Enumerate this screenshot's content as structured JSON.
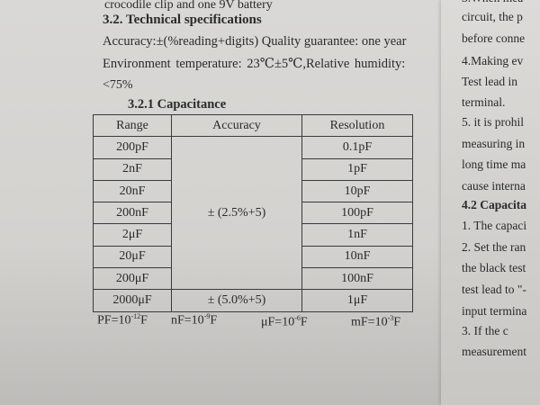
{
  "left": {
    "line0": "crocodile clip and one 9V battery",
    "heading": "3.2. Technical specifications",
    "accuracy_line": "Accuracy:±(%reading+digits)   Quality guarantee: one year",
    "env_line": "Environment   temperature:   23℃±5℃,Relative   humidity:",
    "humidity": "<75%",
    "subheading": "3.2.1    Capacitance"
  },
  "table": {
    "headers": [
      "Range",
      "Accuracy",
      "Resolution"
    ],
    "rows": [
      {
        "range": "200pF",
        "resolution": "0.1pF"
      },
      {
        "range": "2nF",
        "resolution": "1pF"
      },
      {
        "range": "20nF",
        "resolution": "10pF"
      },
      {
        "range": "200nF",
        "resolution": "100pF"
      },
      {
        "range": "2μF",
        "resolution": "1nF"
      },
      {
        "range": "20μF",
        "resolution": "10nF"
      },
      {
        "range": "200μF",
        "resolution": "100nF"
      },
      {
        "range": "2000μF",
        "resolution": "1μF"
      }
    ],
    "accuracy_group1": "± (2.5%+5)",
    "accuracy_group2": "± (5.0%+5)"
  },
  "units": [
    {
      "base": "PF=10",
      "exp": "-12",
      "tail": "F"
    },
    {
      "base": "nF=10",
      "exp": "-9",
      "tail": "F"
    },
    {
      "base": "μF=10",
      "exp": "-6",
      "tail": "F"
    },
    {
      "base": "mF=10",
      "exp": "-3",
      "tail": "F"
    }
  ],
  "right": {
    "lines": [
      "3.When mea",
      "circuit, the p",
      "before conne",
      "4.Making ev",
      "Test  lead  in",
      "terminal.",
      "5. it is prohil",
      "measuring  in",
      "long time ma",
      "cause interna",
      "4.2 Capacita",
      "1. The capaci",
      "2. Set the ran",
      "the black test",
      "test lead to \"-",
      "input termina",
      "3.  If  the  c",
      "measurement"
    ]
  }
}
